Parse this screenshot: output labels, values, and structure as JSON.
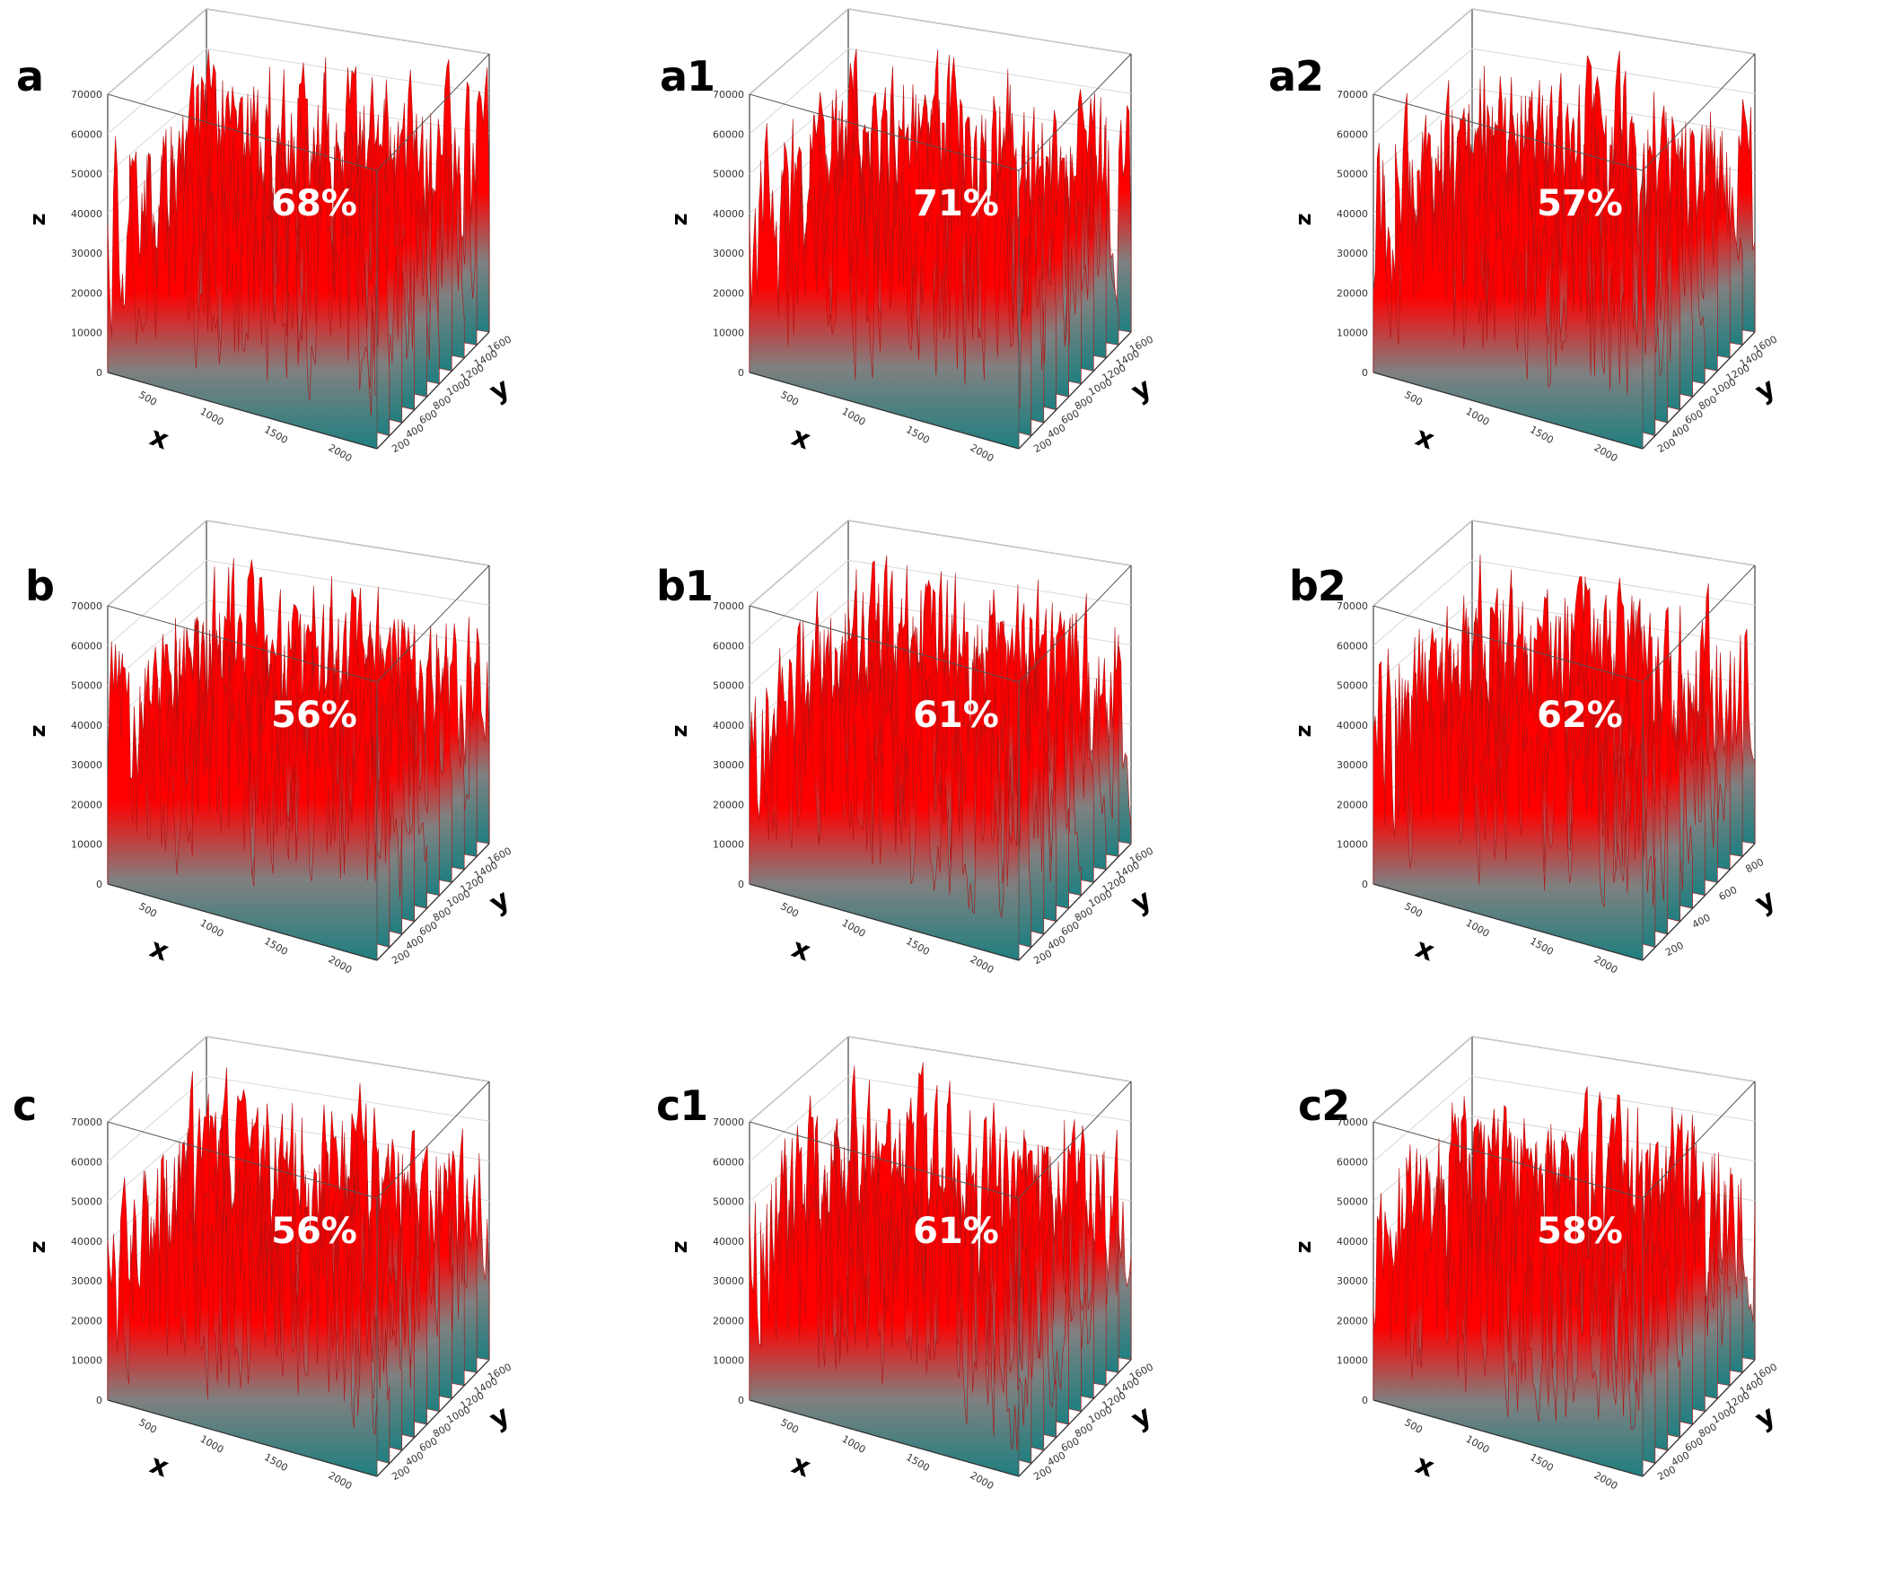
{
  "chart_data": [
    {
      "type": "surface3d",
      "panel": "a",
      "percentage": "68%",
      "xlabel": "x",
      "ylabel": "y",
      "zlabel": "z",
      "zlim": [
        0,
        70000
      ],
      "z_ticks": [
        "0",
        "10000",
        "20000",
        "30000",
        "40000",
        "50000",
        "60000",
        "70000"
      ],
      "x_ticks": [
        "500",
        "1000",
        "1500",
        "2000"
      ],
      "y_ticks": [
        "200",
        "400",
        "600",
        "800",
        "1000",
        "1200",
        "1400",
        "1600"
      ],
      "colors": {
        "high": "#ff0000",
        "mid": "#808080",
        "low": "#1f7f80"
      }
    },
    {
      "type": "surface3d",
      "panel": "a1",
      "percentage": "71%",
      "xlabel": "x",
      "ylabel": "y",
      "zlabel": "z",
      "zlim": [
        0,
        70000
      ],
      "z_ticks": [
        "0",
        "10000",
        "20000",
        "30000",
        "40000",
        "50000",
        "60000",
        "70000"
      ],
      "x_ticks": [
        "500",
        "1000",
        "1500",
        "2000"
      ],
      "y_ticks": [
        "200",
        "400",
        "600",
        "800",
        "1000",
        "1200",
        "1400",
        "1600"
      ],
      "colors": {
        "high": "#ff0000",
        "mid": "#808080",
        "low": "#1f7f80"
      }
    },
    {
      "type": "surface3d",
      "panel": "a2",
      "percentage": "57%",
      "xlabel": "x",
      "ylabel": "y",
      "zlabel": "z",
      "zlim": [
        0,
        70000
      ],
      "z_ticks": [
        "0",
        "10000",
        "20000",
        "30000",
        "40000",
        "50000",
        "60000",
        "70000"
      ],
      "x_ticks": [
        "500",
        "1000",
        "1500",
        "2000"
      ],
      "y_ticks": [
        "200",
        "400",
        "600",
        "800",
        "1000",
        "1200",
        "1400",
        "1600"
      ],
      "colors": {
        "high": "#ff0000",
        "mid": "#808080",
        "low": "#1f7f80"
      }
    },
    {
      "type": "surface3d",
      "panel": "b",
      "percentage": "56%",
      "xlabel": "x",
      "ylabel": "y",
      "zlabel": "z",
      "zlim": [
        0,
        70000
      ],
      "z_ticks": [
        "0",
        "10000",
        "20000",
        "30000",
        "40000",
        "50000",
        "60000",
        "70000"
      ],
      "x_ticks": [
        "500",
        "1000",
        "1500",
        "2000"
      ],
      "y_ticks": [
        "200",
        "400",
        "600",
        "800",
        "1000",
        "1200",
        "1400",
        "1600"
      ],
      "colors": {
        "high": "#ff0000",
        "mid": "#808080",
        "low": "#1f7f80"
      }
    },
    {
      "type": "surface3d",
      "panel": "b1",
      "percentage": "61%",
      "xlabel": "x",
      "ylabel": "y",
      "zlabel": "z",
      "zlim": [
        0,
        70000
      ],
      "z_ticks": [
        "0",
        "10000",
        "20000",
        "30000",
        "40000",
        "50000",
        "60000",
        "70000"
      ],
      "x_ticks": [
        "500",
        "1000",
        "1500",
        "2000"
      ],
      "y_ticks": [
        "200",
        "400",
        "600",
        "800",
        "1000",
        "1200",
        "1400",
        "1600"
      ],
      "colors": {
        "high": "#ff0000",
        "mid": "#808080",
        "low": "#1f7f80"
      }
    },
    {
      "type": "surface3d",
      "panel": "b2",
      "percentage": "62%",
      "xlabel": "x",
      "ylabel": "y",
      "zlabel": "z",
      "zlim": [
        0,
        70000
      ],
      "z_ticks": [
        "0",
        "10000",
        "20000",
        "30000",
        "40000",
        "50000",
        "60000",
        "70000"
      ],
      "x_ticks": [
        "500",
        "1000",
        "1500",
        "2000"
      ],
      "y_ticks": [
        "200",
        "400",
        "600",
        "800"
      ],
      "colors": {
        "high": "#ff0000",
        "mid": "#808080",
        "low": "#1f7f80"
      }
    },
    {
      "type": "surface3d",
      "panel": "c",
      "percentage": "56%",
      "xlabel": "x",
      "ylabel": "y",
      "zlabel": "z",
      "zlim": [
        0,
        70000
      ],
      "z_ticks": [
        "0",
        "10000",
        "20000",
        "30000",
        "40000",
        "50000",
        "60000",
        "70000"
      ],
      "x_ticks": [
        "500",
        "1000",
        "1500",
        "2000"
      ],
      "y_ticks": [
        "200",
        "400",
        "600",
        "800",
        "1000",
        "1200",
        "1400",
        "1600"
      ],
      "colors": {
        "high": "#ff0000",
        "mid": "#808080",
        "low": "#1f7f80"
      }
    },
    {
      "type": "surface3d",
      "panel": "c1",
      "percentage": "61%",
      "xlabel": "x",
      "ylabel": "y",
      "zlabel": "z",
      "zlim": [
        0,
        70000
      ],
      "z_ticks": [
        "0",
        "10000",
        "20000",
        "30000",
        "40000",
        "50000",
        "60000",
        "70000"
      ],
      "x_ticks": [
        "500",
        "1000",
        "1500",
        "2000"
      ],
      "y_ticks": [
        "200",
        "400",
        "600",
        "800",
        "1000",
        "1200",
        "1400",
        "1600"
      ],
      "colors": {
        "high": "#ff0000",
        "mid": "#808080",
        "low": "#1f7f80"
      }
    },
    {
      "type": "surface3d",
      "panel": "c2",
      "percentage": "58%",
      "xlabel": "x",
      "ylabel": "y",
      "zlabel": "z",
      "zlim": [
        0,
        70000
      ],
      "z_ticks": [
        "0",
        "10000",
        "20000",
        "30000",
        "40000",
        "50000",
        "60000",
        "70000"
      ],
      "x_ticks": [
        "500",
        "1000",
        "1500",
        "2000"
      ],
      "y_ticks": [
        "200",
        "400",
        "600",
        "800",
        "1000",
        "1200",
        "1400",
        "1600"
      ],
      "colors": {
        "high": "#ff0000",
        "mid": "#808080",
        "low": "#1f7f80"
      }
    }
  ]
}
